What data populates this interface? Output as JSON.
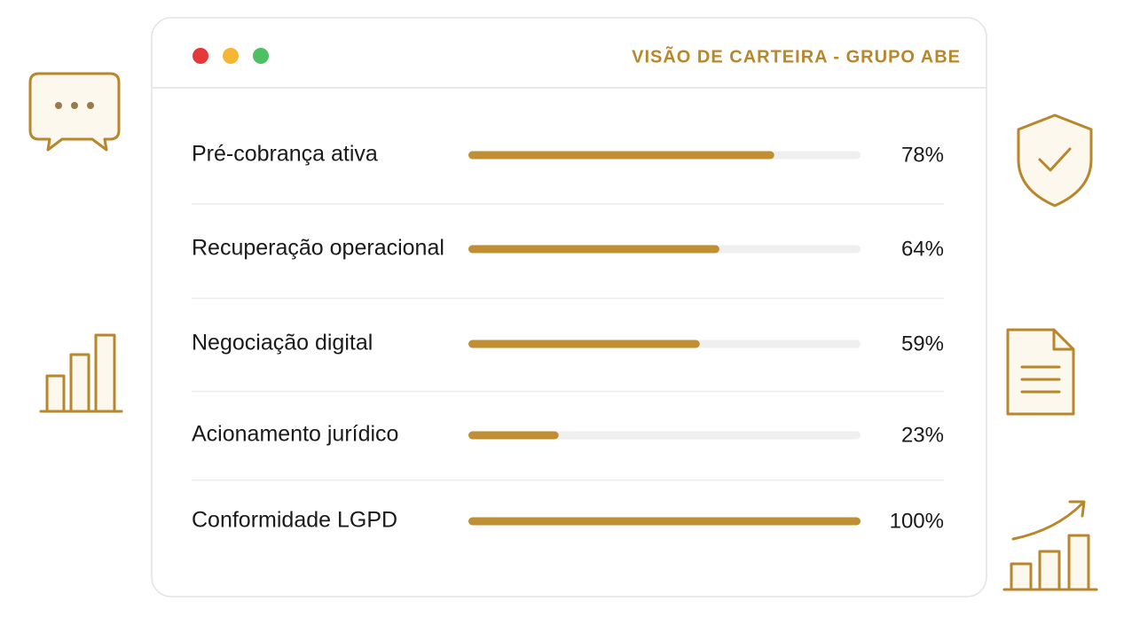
{
  "chart_data": {
    "type": "bar",
    "orientation": "horizontal",
    "title": "VISÃO DE CARTEIRA - GRUPO ABE",
    "categories": [
      "Pré-cobrança ativa",
      "Recuperação operacional",
      "Negociação digital",
      "Acionamento jurídico",
      "Conformidade LGPD"
    ],
    "values": [
      78,
      64,
      59,
      23,
      100
    ],
    "value_labels": [
      "78%",
      "64%",
      "59%",
      "23%",
      "100%"
    ],
    "xlim": [
      0,
      100
    ],
    "color": "#c08f34",
    "track_color": "#efefef"
  }
}
